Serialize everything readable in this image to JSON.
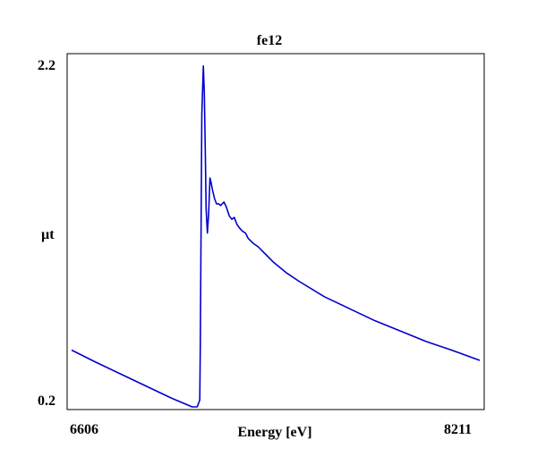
{
  "chart_data": {
    "type": "line",
    "title": "fe12",
    "xlabel": "Energy [eV]",
    "ylabel": "µt",
    "xlim": [
      6606,
      8211
    ],
    "ylim": [
      0.2,
      2.2
    ],
    "x_tick_labels": [
      "6606",
      "8211"
    ],
    "y_tick_labels": [
      "0.2",
      "2.2"
    ],
    "grid": false,
    "legend": "none",
    "line_color": "#0000cc",
    "series": [
      {
        "x": [
          6606,
          6700,
          6800,
          6900,
          7000,
          7080,
          7100,
          7110,
          7112,
          7118,
          7124,
          7128,
          7132,
          7135,
          7140,
          7145,
          7150,
          7155,
          7160,
          7168,
          7176,
          7184,
          7192,
          7205,
          7215,
          7226,
          7236,
          7246,
          7256,
          7266,
          7278,
          7290,
          7300,
          7320,
          7340,
          7360,
          7380,
          7400,
          7450,
          7500,
          7600,
          7700,
          7800,
          7900,
          8000,
          8100,
          8211
        ],
        "y": [
          0.53,
          0.46,
          0.39,
          0.32,
          0.25,
          0.2,
          0.2,
          0.24,
          0.55,
          1.9,
          2.18,
          2.02,
          1.68,
          1.35,
          1.21,
          1.32,
          1.53,
          1.5,
          1.46,
          1.41,
          1.38,
          1.38,
          1.37,
          1.39,
          1.36,
          1.31,
          1.29,
          1.3,
          1.26,
          1.24,
          1.22,
          1.21,
          1.18,
          1.15,
          1.13,
          1.1,
          1.07,
          1.04,
          0.98,
          0.93,
          0.84,
          0.77,
          0.7,
          0.64,
          0.58,
          0.53,
          0.47
        ]
      }
    ]
  }
}
